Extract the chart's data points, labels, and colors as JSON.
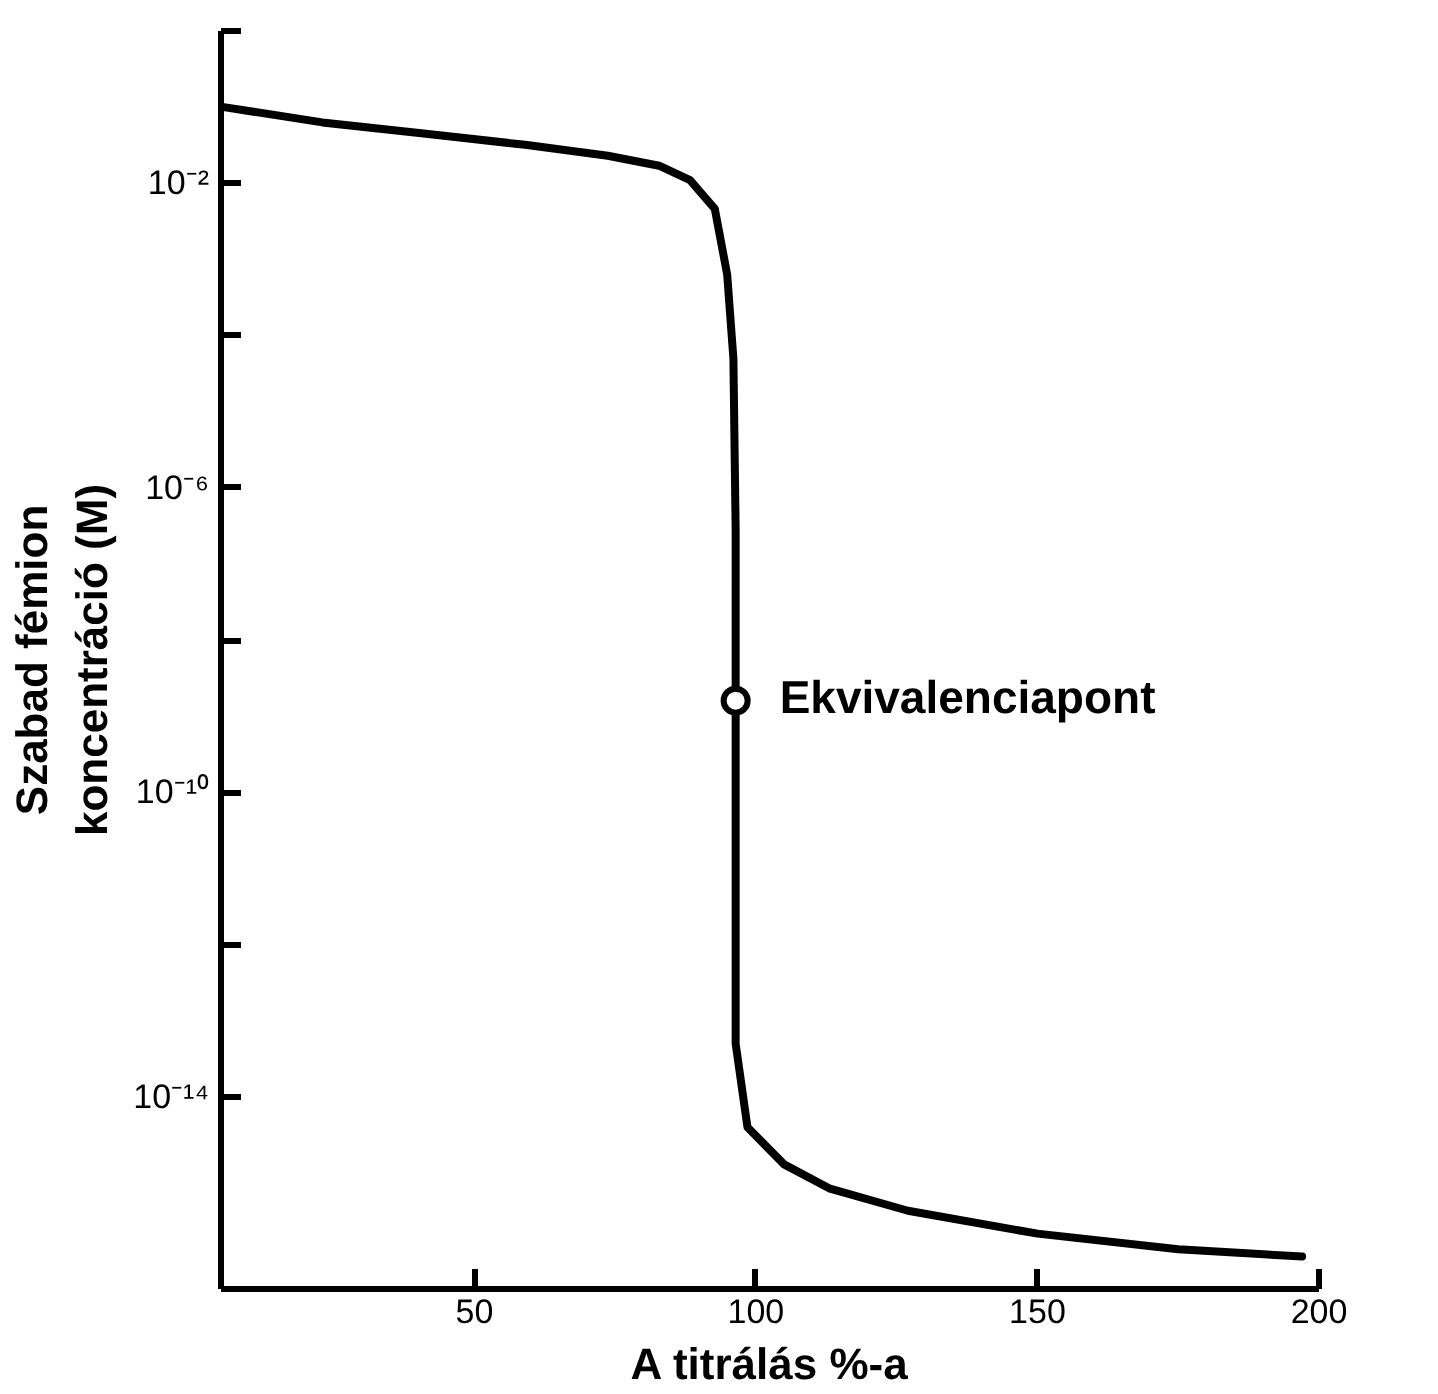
{
  "chart_data": {
    "type": "line",
    "xlabel": "A titrálás %-a",
    "ylabel": "Szabad fémion\nkoncentráció (M)",
    "x": [
      5.5,
      23,
      41,
      59,
      73.7,
      82.8,
      88.3,
      92.7,
      94.9,
      96,
      96.4,
      96.4,
      96.4,
      96.4,
      98.5,
      105,
      113,
      127,
      150,
      175,
      197
    ],
    "series": [
      {
        "color": "#000000",
        "values": [
          0.1,
          0.063,
          0.045,
          0.032,
          0.023,
          0.017,
          0.011,
          0.0046,
          0.00063,
          5e-05,
          2.8e-07,
          1.6e-09,
          5e-12,
          5e-14,
          4e-15,
          1.3e-15,
          6.3e-16,
          3.2e-16,
          1.6e-16,
          1e-16,
          8e-17
        ]
      }
    ],
    "xlim": [
      5,
      200
    ],
    "xticks": [
      50,
      100,
      150,
      200
    ],
    "log": true,
    "ylim": [
      3e-17,
      1
    ],
    "yticks": [
      {
        "value": 1,
        "label": null
      },
      {
        "value": 0.01,
        "label": "10⁻²"
      },
      {
        "value": 0.0001,
        "label": null
      },
      {
        "value": 1e-06,
        "label": "10⁻⁶"
      },
      {
        "value": 1e-08,
        "label": null
      },
      {
        "value": 1e-10,
        "label": "10⁻¹⁰"
      },
      {
        "value": 1e-12,
        "label": null
      },
      {
        "value": 1e-14,
        "label": "10⁻¹⁴"
      }
    ],
    "annotations": [
      {
        "text": "Ekvivalenciapont",
        "x": 96.4,
        "y": 1.6e-09
      }
    ],
    "grid": false,
    "marker": "none",
    "line_style": "solid"
  }
}
